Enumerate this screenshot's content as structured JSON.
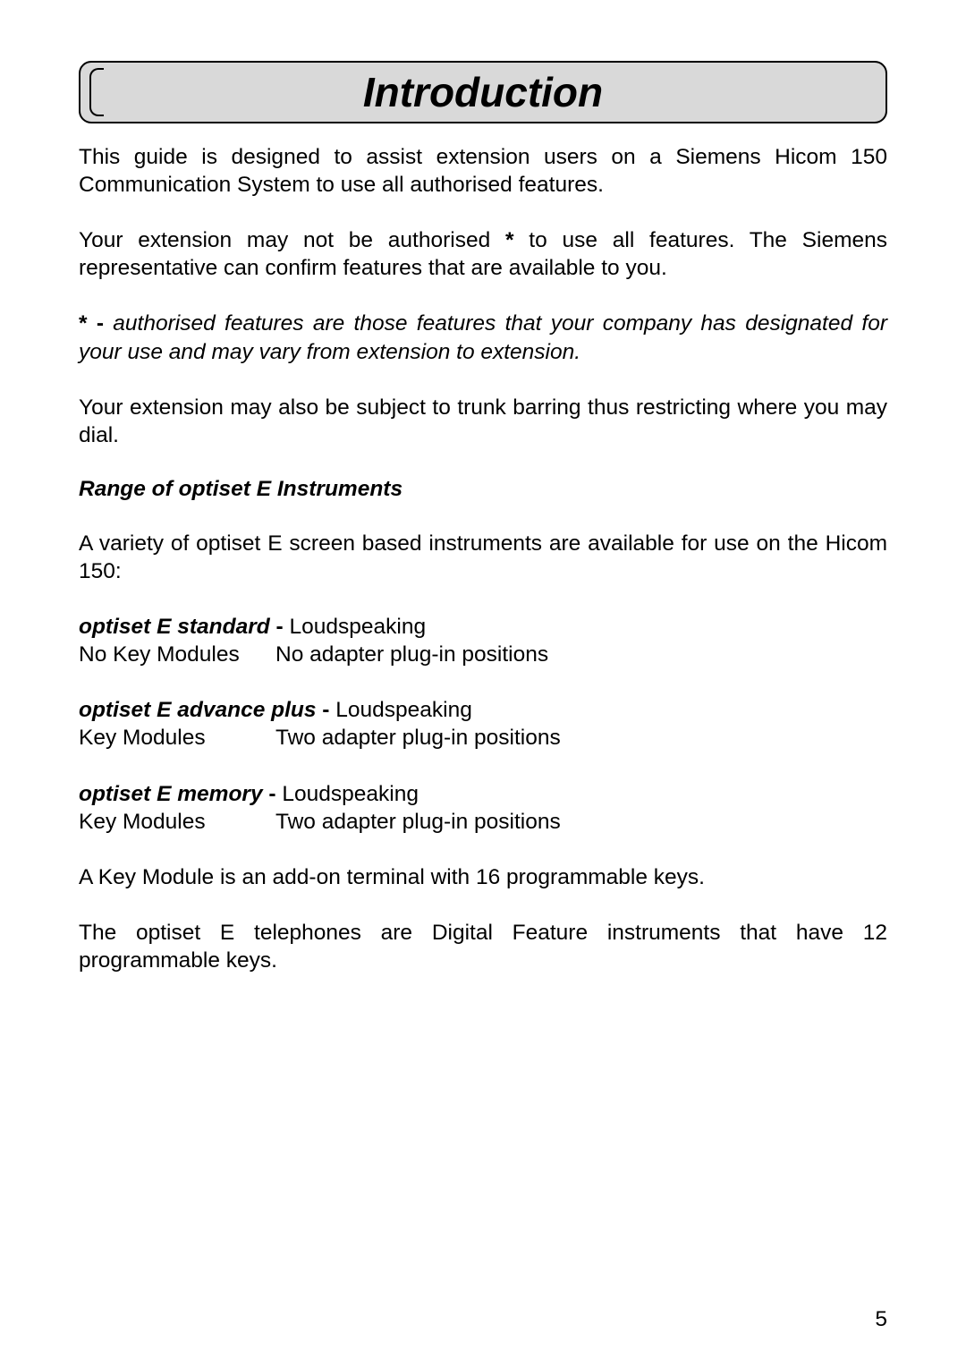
{
  "title": "Introduction",
  "para1": "This guide is designed to assist extension users on a Siemens Hicom 150 Communication System to use all authorised features.",
  "para2_a": "Your extension may not be authorised ",
  "para2_bold": "*",
  "para2_b": " to use all features. The Siemens representative can confirm features that are available to you.",
  "footnote_prefix": "* - ",
  "footnote_text": "authorised features are those features that your company has designated for your use and may vary from extension to extension.",
  "para3": "Your extension may also be subject to trunk barring thus restricting where you may dial.",
  "sub_heading": "Range of optiset E Instruments",
  "para4": "A variety of optiset E screen based instruments are available for use on the Hicom 150:",
  "instruments": [
    {
      "name": "optiset E standard",
      "dash": " - ",
      "attr": "Loudspeaking",
      "col1": "No Key Modules",
      "col2": "No adapter plug-in positions"
    },
    {
      "name": "optiset E advance plus",
      "dash": " - ",
      "attr": "Loudspeaking",
      "col1": "Key Modules",
      "col2": "Two adapter plug-in positions"
    },
    {
      "name": "optiset E memory",
      "dash": " - ",
      "attr": "Loudspeaking",
      "col1": "Key Modules",
      "col2": "Two adapter plug-in positions"
    }
  ],
  "para5": "A Key Module is an add-on terminal with 16 programmable keys.",
  "para6": "The optiset E telephones are Digital Feature instruments that have 12 programmable keys.",
  "page_number": "5",
  "styles": {
    "page_bg": "#ffffff",
    "title_bg": "#d9d9d9",
    "text_color": "#000000",
    "border_color": "#000000",
    "title_fontsize": 46,
    "body_fontsize": 24.5,
    "border_radius": 14
  }
}
